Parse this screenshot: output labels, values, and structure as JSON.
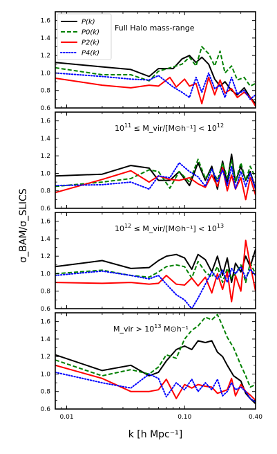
{
  "chart_data": {
    "type": "line",
    "x_scale": "log",
    "xlim": [
      0.008,
      0.4
    ],
    "ylim": [
      0.6,
      1.7
    ],
    "xticks": [
      0.01,
      0.1,
      0.4
    ],
    "xtick_labels": [
      "0.01",
      "0.10",
      "0.40"
    ],
    "yticks": [
      0.6,
      0.8,
      1.0,
      1.2,
      1.4,
      1.6
    ],
    "ytick_labels": [
      "0.6",
      "0.8",
      "1.0",
      "1.2",
      "1.4",
      "1.6"
    ],
    "xlabel": "k [h Mpc⁻¹]",
    "ylabel": "σ_BAM/σ_SLICS",
    "legend": {
      "placement": "top-left of first panel",
      "entries": [
        {
          "label": "P(k)",
          "color": "#000000",
          "style": "solid"
        },
        {
          "label": "P0(k)",
          "color": "#008000",
          "style": "dashed"
        },
        {
          "label": "P2(k)",
          "color": "#ff0000",
          "style": "solid"
        },
        {
          "label": "P4(k)",
          "color": "#0000ff",
          "style": "dotted"
        }
      ]
    },
    "panels": [
      {
        "annotation": "Full Halo mass-range",
        "series": [
          {
            "legend_index": 0,
            "x": [
              0.008,
              0.02,
              0.035,
              0.05,
              0.06,
              0.08,
              0.095,
              0.11,
              0.125,
              0.14,
              0.16,
              0.18,
              0.2,
              0.22,
              0.25,
              0.28,
              0.32,
              0.36,
              0.4
            ],
            "y": [
              1.12,
              1.07,
              1.04,
              0.96,
              1.05,
              1.05,
              1.16,
              1.2,
              1.12,
              1.18,
              1.1,
              0.93,
              0.85,
              0.9,
              0.8,
              0.75,
              0.83,
              0.72,
              0.65
            ]
          },
          {
            "legend_index": 1,
            "x": [
              0.008,
              0.02,
              0.035,
              0.05,
              0.06,
              0.08,
              0.095,
              0.11,
              0.125,
              0.14,
              0.16,
              0.18,
              0.2,
              0.22,
              0.25,
              0.28,
              0.32,
              0.36,
              0.4
            ],
            "y": [
              1.06,
              0.98,
              0.98,
              0.91,
              1.02,
              1.07,
              1.1,
              1.18,
              1.08,
              1.3,
              1.22,
              1.08,
              1.25,
              1.0,
              1.08,
              0.92,
              0.95,
              0.85,
              0.88
            ]
          },
          {
            "legend_index": 2,
            "x": [
              0.008,
              0.02,
              0.035,
              0.05,
              0.06,
              0.075,
              0.085,
              0.1,
              0.11,
              0.125,
              0.14,
              0.16,
              0.18,
              0.2,
              0.22,
              0.25,
              0.28,
              0.32,
              0.36,
              0.4
            ],
            "y": [
              0.94,
              0.86,
              0.83,
              0.86,
              0.85,
              0.95,
              0.84,
              0.93,
              0.85,
              0.88,
              0.65,
              0.95,
              0.75,
              0.92,
              0.77,
              0.82,
              0.72,
              0.78,
              0.72,
              0.62
            ]
          },
          {
            "legend_index": 3,
            "x": [
              0.008,
              0.02,
              0.035,
              0.05,
              0.06,
              0.08,
              0.095,
              0.11,
              0.125,
              0.14,
              0.16,
              0.18,
              0.2,
              0.22,
              0.25,
              0.28,
              0.32,
              0.36,
              0.4
            ],
            "y": [
              1.0,
              0.96,
              0.93,
              0.92,
              0.97,
              0.84,
              0.78,
              0.72,
              0.95,
              0.78,
              1.0,
              0.82,
              0.86,
              0.72,
              0.95,
              0.76,
              0.8,
              0.7,
              0.75
            ]
          }
        ]
      },
      {
        "annotation_prefix": "10",
        "annotation_sup1": "11",
        "annotation_mid": " ≤ M_vir/[M⊙h⁻¹] < 10",
        "annotation_sup2": "12",
        "series": [
          {
            "legend_index": 0,
            "x": [
              0.008,
              0.02,
              0.035,
              0.05,
              0.06,
              0.075,
              0.09,
              0.11,
              0.13,
              0.15,
              0.17,
              0.19,
              0.21,
              0.23,
              0.25,
              0.27,
              0.3,
              0.33,
              0.36,
              0.4
            ],
            "y": [
              0.97,
              0.99,
              1.09,
              1.06,
              0.92,
              0.92,
              1.02,
              0.86,
              1.12,
              0.92,
              1.08,
              0.82,
              1.14,
              0.88,
              1.22,
              0.9,
              1.08,
              0.92,
              1.02,
              0.82
            ]
          },
          {
            "legend_index": 1,
            "x": [
              0.008,
              0.02,
              0.035,
              0.05,
              0.06,
              0.075,
              0.09,
              0.11,
              0.13,
              0.15,
              0.17,
              0.19,
              0.21,
              0.23,
              0.25,
              0.27,
              0.3,
              0.33,
              0.36,
              0.4
            ],
            "y": [
              0.85,
              0.9,
              0.94,
              1.04,
              1.02,
              0.83,
              1.02,
              0.9,
              1.16,
              0.94,
              1.05,
              0.92,
              1.12,
              0.95,
              1.15,
              0.9,
              1.12,
              0.92,
              1.08,
              0.95
            ]
          },
          {
            "legend_index": 2,
            "x": [
              0.008,
              0.02,
              0.035,
              0.05,
              0.06,
              0.075,
              0.09,
              0.11,
              0.13,
              0.15,
              0.17,
              0.19,
              0.21,
              0.23,
              0.25,
              0.27,
              0.3,
              0.33,
              0.36,
              0.4
            ],
            "y": [
              0.78,
              0.93,
              1.03,
              0.9,
              0.97,
              0.93,
              0.92,
              0.95,
              0.88,
              0.84,
              0.98,
              0.85,
              1.07,
              0.8,
              0.98,
              0.82,
              0.95,
              0.7,
              0.95,
              0.75
            ]
          },
          {
            "legend_index": 3,
            "x": [
              0.008,
              0.02,
              0.035,
              0.05,
              0.06,
              0.075,
              0.09,
              0.11,
              0.13,
              0.15,
              0.17,
              0.19,
              0.21,
              0.23,
              0.25,
              0.27,
              0.3,
              0.33,
              0.36,
              0.4
            ],
            "y": [
              0.86,
              0.87,
              0.9,
              0.82,
              0.97,
              0.95,
              1.12,
              1.02,
              0.96,
              0.85,
              1.05,
              0.9,
              1.04,
              0.86,
              1.08,
              0.82,
              1.02,
              0.85,
              1.0,
              0.82
            ]
          }
        ]
      },
      {
        "annotation_prefix": "10",
        "annotation_sup1": "12",
        "annotation_mid": " ≤ M_vir/[M⊙h⁻¹] < 10",
        "annotation_sup2": "13",
        "series": [
          {
            "legend_index": 0,
            "x": [
              0.008,
              0.02,
              0.035,
              0.05,
              0.06,
              0.07,
              0.085,
              0.1,
              0.115,
              0.13,
              0.15,
              0.17,
              0.19,
              0.21,
              0.23,
              0.25,
              0.27,
              0.3,
              0.33,
              0.36,
              0.4
            ],
            "y": [
              1.08,
              1.15,
              1.06,
              1.07,
              1.15,
              1.2,
              1.22,
              1.18,
              1.05,
              1.22,
              1.16,
              1.02,
              1.2,
              0.98,
              1.18,
              0.9,
              1.12,
              1.02,
              1.2,
              1.08,
              1.28
            ]
          },
          {
            "legend_index": 1,
            "x": [
              0.008,
              0.02,
              0.035,
              0.05,
              0.06,
              0.07,
              0.085,
              0.1,
              0.115,
              0.13,
              0.15,
              0.17,
              0.19,
              0.21,
              0.23,
              0.25,
              0.27,
              0.3,
              0.33,
              0.36,
              0.4
            ],
            "y": [
              1.0,
              1.04,
              0.98,
              0.96,
              1.02,
              1.08,
              1.1,
              1.08,
              0.95,
              1.14,
              1.02,
              0.96,
              1.08,
              0.9,
              1.06,
              0.95,
              1.0,
              1.1,
              0.9,
              1.12,
              1.0
            ]
          },
          {
            "legend_index": 2,
            "x": [
              0.008,
              0.02,
              0.035,
              0.05,
              0.06,
              0.07,
              0.085,
              0.1,
              0.115,
              0.13,
              0.15,
              0.17,
              0.19,
              0.21,
              0.23,
              0.25,
              0.27,
              0.3,
              0.33,
              0.36,
              0.4
            ],
            "y": [
              0.9,
              0.89,
              0.9,
              0.88,
              0.89,
              0.98,
              0.88,
              0.87,
              0.95,
              0.86,
              0.96,
              0.78,
              1.0,
              0.82,
              1.02,
              0.68,
              0.98,
              0.8,
              1.38,
              1.1,
              0.8
            ]
          },
          {
            "legend_index": 3,
            "x": [
              0.008,
              0.02,
              0.035,
              0.05,
              0.06,
              0.07,
              0.085,
              0.1,
              0.115,
              0.13,
              0.15,
              0.17,
              0.19,
              0.21,
              0.23,
              0.25,
              0.27,
              0.3,
              0.33,
              0.36,
              0.4
            ],
            "y": [
              0.98,
              1.03,
              0.98,
              0.94,
              0.98,
              0.88,
              0.76,
              0.7,
              0.6,
              0.72,
              0.88,
              1.02,
              0.94,
              1.04,
              0.9,
              1.06,
              1.0,
              1.08,
              0.95,
              1.05,
              0.98
            ]
          }
        ]
      },
      {
        "annotation_prefix": "M_vir > 10",
        "annotation_sup1": "13",
        "annotation_mid": " M⊙h⁻¹",
        "annotation_sup2": "",
        "series": [
          {
            "legend_index": 0,
            "x": [
              0.008,
              0.02,
              0.035,
              0.05,
              0.06,
              0.07,
              0.085,
              0.1,
              0.115,
              0.13,
              0.15,
              0.17,
              0.19,
              0.21,
              0.23,
              0.26,
              0.3,
              0.33,
              0.36,
              0.4
            ],
            "y": [
              1.22,
              1.04,
              1.1,
              0.98,
              1.02,
              1.15,
              1.28,
              1.32,
              1.28,
              1.38,
              1.36,
              1.38,
              1.25,
              1.2,
              1.1,
              0.98,
              0.92,
              0.78,
              0.72,
              0.66
            ]
          },
          {
            "legend_index": 1,
            "x": [
              0.008,
              0.02,
              0.035,
              0.05,
              0.06,
              0.07,
              0.085,
              0.1,
              0.115,
              0.13,
              0.15,
              0.17,
              0.19,
              0.21,
              0.23,
              0.26,
              0.3,
              0.33,
              0.36,
              0.4
            ],
            "y": [
              1.16,
              0.98,
              1.05,
              1.0,
              1.08,
              1.22,
              1.18,
              1.4,
              1.5,
              1.55,
              1.65,
              1.62,
              1.68,
              1.55,
              1.42,
              1.3,
              1.1,
              0.98,
              0.85,
              0.88
            ]
          },
          {
            "legend_index": 2,
            "x": [
              0.008,
              0.02,
              0.035,
              0.05,
              0.06,
              0.07,
              0.085,
              0.1,
              0.115,
              0.13,
              0.15,
              0.17,
              0.19,
              0.21,
              0.23,
              0.25,
              0.27,
              0.3,
              0.33,
              0.36,
              0.4
            ],
            "y": [
              1.1,
              0.95,
              0.8,
              0.8,
              0.82,
              0.94,
              0.72,
              0.88,
              0.84,
              0.88,
              0.86,
              0.85,
              0.78,
              0.8,
              0.82,
              0.95,
              0.75,
              0.88,
              0.8,
              0.76,
              0.7
            ]
          },
          {
            "legend_index": 3,
            "x": [
              0.008,
              0.02,
              0.035,
              0.05,
              0.06,
              0.07,
              0.085,
              0.1,
              0.115,
              0.13,
              0.15,
              0.17,
              0.19,
              0.21,
              0.23,
              0.25,
              0.27,
              0.3,
              0.33,
              0.36,
              0.4
            ],
            "y": [
              1.02,
              0.9,
              0.84,
              1.0,
              0.95,
              0.74,
              0.9,
              0.82,
              0.94,
              0.8,
              0.9,
              0.82,
              0.94,
              0.75,
              0.8,
              0.9,
              0.82,
              0.85,
              0.8,
              0.72,
              0.68
            ]
          }
        ]
      }
    ]
  }
}
